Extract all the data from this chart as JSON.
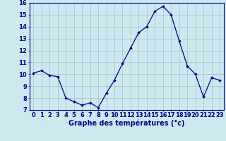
{
  "x": [
    0,
    1,
    2,
    3,
    4,
    5,
    6,
    7,
    8,
    9,
    10,
    11,
    12,
    13,
    14,
    15,
    16,
    17,
    18,
    19,
    20,
    21,
    22,
    23
  ],
  "y": [
    10.1,
    10.3,
    9.9,
    9.8,
    8.0,
    7.7,
    7.4,
    7.6,
    7.2,
    8.4,
    9.5,
    10.9,
    12.2,
    13.5,
    14.0,
    15.3,
    15.7,
    15.0,
    12.8,
    10.7,
    10.0,
    8.1,
    9.7,
    9.5
  ],
  "xlabel": "Graphe des températures (°c)",
  "ylim": [
    7,
    16
  ],
  "yticks": [
    7,
    8,
    9,
    10,
    11,
    12,
    13,
    14,
    15,
    16
  ],
  "xticks": [
    0,
    1,
    2,
    3,
    4,
    5,
    6,
    7,
    8,
    9,
    10,
    11,
    12,
    13,
    14,
    15,
    16,
    17,
    18,
    19,
    20,
    21,
    22,
    23
  ],
  "line_color": "#00008b",
  "marker": "D",
  "marker_size": 1.8,
  "bg_color": "#cce9f0",
  "grid_color": "#aabbc8",
  "axis_label_color": "#00008b",
  "tick_color": "#00008b",
  "xlabel_fontsize": 7.0,
  "tick_fontsize": 6.0
}
